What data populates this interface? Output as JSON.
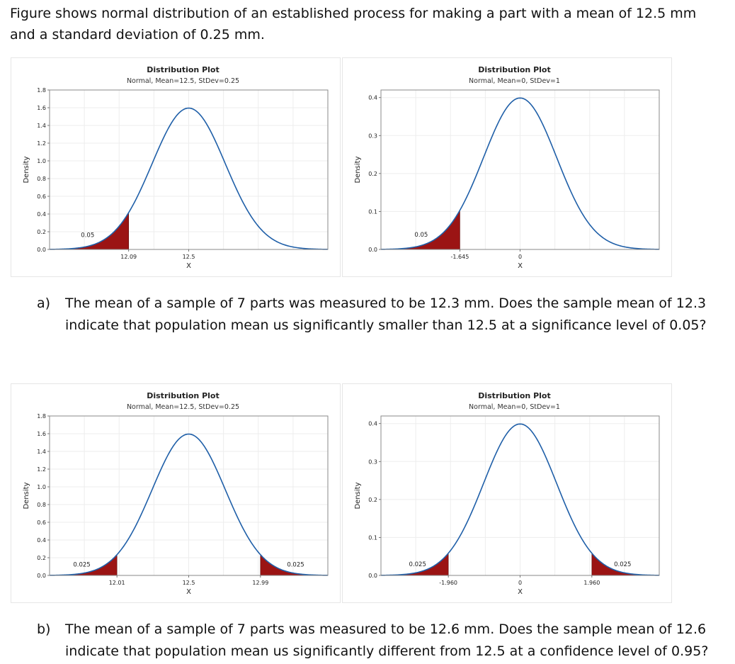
{
  "intro_text": "Figure shows normal distribution of an established process for making a part with a mean of 12.5 mm and a standard deviation of 0.25 mm.",
  "question_a": {
    "letter": "a)",
    "text": "The mean of a sample of 7 parts was measured to be 12.3 mm.  Does the sample mean of 12.3 indicate that population mean us significantly smaller than 12.5 at a significance level of 0.05?"
  },
  "question_b": {
    "letter": "b)",
    "text": "The mean of a sample of 7 parts was measured to be 12.6 mm.  Does the sample mean of 12.6 indicate that population mean us significantly different from 12.5 at a confidence level of 0.95?"
  },
  "colors": {
    "curve": "#1f5fa8",
    "shade": "#9b1414",
    "grid": "#ededed",
    "frame": "#8a8a8a"
  },
  "chart_data": [
    {
      "type": "area",
      "title": "Distribution Plot",
      "subtitle": "Normal, Mean=12.5, StDev=0.25",
      "mean": 12.5,
      "sd": 0.25,
      "xlabel": "X",
      "ylabel": "Density",
      "xlim": [
        11.55,
        13.45
      ],
      "ylim": [
        0,
        1.8
      ],
      "yticks": [
        "0.0",
        "0.2",
        "0.4",
        "0.6",
        "0.8",
        "1.0",
        "1.2",
        "1.4",
        "1.6",
        "1.8"
      ],
      "xticks": [
        {
          "value": 12.09,
          "label": "12.09"
        },
        {
          "value": 12.5,
          "label": "12.5"
        }
      ],
      "shaded": [
        {
          "from": 11.55,
          "to": 12.09,
          "label": "0.05",
          "label_x": 11.81,
          "label_y": 0.14
        }
      ]
    },
    {
      "type": "area",
      "title": "Distribution Plot",
      "subtitle": "Normal, Mean=0, StDev=1",
      "mean": 0,
      "sd": 1,
      "xlabel": "X",
      "ylabel": "Density",
      "xlim": [
        -3.8,
        3.8
      ],
      "ylim": [
        0,
        0.42
      ],
      "yticks": [
        "0.0",
        "0.1",
        "0.2",
        "0.3",
        "0.4"
      ],
      "xticks": [
        {
          "value": -1.645,
          "label": "-1.645"
        },
        {
          "value": 0,
          "label": "0"
        }
      ],
      "shaded": [
        {
          "from": -3.8,
          "to": -1.645,
          "label": "0.05",
          "label_x": -2.7,
          "label_y": 0.034
        }
      ]
    },
    {
      "type": "area",
      "title": "Distribution Plot",
      "subtitle": "Normal, Mean=12.5, StDev=0.25",
      "mean": 12.5,
      "sd": 0.25,
      "xlabel": "X",
      "ylabel": "Density",
      "xlim": [
        11.55,
        13.45
      ],
      "ylim": [
        0,
        1.8
      ],
      "yticks": [
        "0.0",
        "0.2",
        "0.4",
        "0.6",
        "0.8",
        "1.0",
        "1.2",
        "1.4",
        "1.6",
        "1.8"
      ],
      "xticks": [
        {
          "value": 12.01,
          "label": "12.01"
        },
        {
          "value": 12.5,
          "label": "12.5"
        },
        {
          "value": 12.99,
          "label": "12.99"
        }
      ],
      "shaded": [
        {
          "from": 11.55,
          "to": 12.01,
          "label": "0.025",
          "label_x": 11.77,
          "label_y": 0.1
        },
        {
          "from": 12.99,
          "to": 13.45,
          "label": "0.025",
          "label_x": 13.23,
          "label_y": 0.1
        }
      ]
    },
    {
      "type": "area",
      "title": "Distribution Plot",
      "subtitle": "Normal, Mean=0, StDev=1",
      "mean": 0,
      "sd": 1,
      "xlabel": "X",
      "ylabel": "Density",
      "xlim": [
        -3.8,
        3.8
      ],
      "ylim": [
        0,
        0.42
      ],
      "yticks": [
        "0.0",
        "0.1",
        "0.2",
        "0.3",
        "0.4"
      ],
      "xticks": [
        {
          "value": -1.96,
          "label": "-1.960"
        },
        {
          "value": 0,
          "label": "0"
        },
        {
          "value": 1.96,
          "label": "1.960"
        }
      ],
      "shaded": [
        {
          "from": -3.8,
          "to": -1.96,
          "label": "0.025",
          "label_x": -2.8,
          "label_y": 0.024
        },
        {
          "from": 1.96,
          "to": 3.8,
          "label": "0.025",
          "label_x": 2.8,
          "label_y": 0.024
        }
      ]
    }
  ]
}
